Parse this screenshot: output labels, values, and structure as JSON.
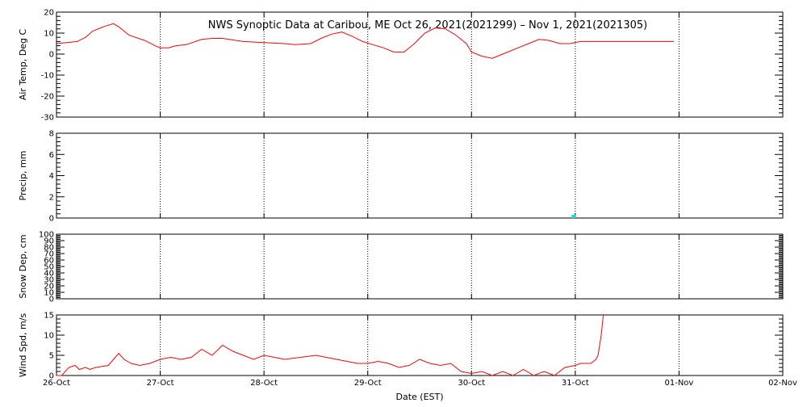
{
  "title": "NWS Synoptic Data at Caribou, ME   Oct 26, 2021(2021299) – Nov  1, 2021(2021305)",
  "chart_data": {
    "type": "line",
    "xlabel": "Date (EST)",
    "x_domain_days": [
      0,
      7
    ],
    "x_ticks": [
      {
        "day": 0,
        "label": "26-Oct"
      },
      {
        "day": 1,
        "label": "27-Oct"
      },
      {
        "day": 2,
        "label": "28-Oct"
      },
      {
        "day": 3,
        "label": "29-Oct"
      },
      {
        "day": 4,
        "label": "30-Oct"
      },
      {
        "day": 5,
        "label": "31-Oct"
      },
      {
        "day": 6,
        "label": "01-Nov"
      },
      {
        "day": 7,
        "label": "02-Nov"
      }
    ],
    "series_color": "#ff0000",
    "precip_color": "#00e5e5",
    "grid": "dotted-vertical",
    "panels": [
      {
        "key": "airtemp",
        "ylabel": "Air Temp, Deg C",
        "ylim": [
          -30,
          20
        ],
        "yticks": [
          20,
          10,
          0,
          -10,
          -20,
          -30
        ],
        "series": [
          [
            0.0,
            5
          ],
          [
            0.1,
            5.5
          ],
          [
            0.2,
            6
          ],
          [
            0.28,
            8
          ],
          [
            0.35,
            11
          ],
          [
            0.45,
            13
          ],
          [
            0.55,
            14.5
          ],
          [
            0.6,
            13
          ],
          [
            0.7,
            9
          ],
          [
            0.85,
            6.5
          ],
          [
            0.95,
            4
          ],
          [
            1.0,
            3
          ],
          [
            1.08,
            3
          ],
          [
            1.15,
            4
          ],
          [
            1.25,
            4.5
          ],
          [
            1.4,
            7
          ],
          [
            1.5,
            7.5
          ],
          [
            1.6,
            7.5
          ],
          [
            1.8,
            6
          ],
          [
            2.0,
            5.5
          ],
          [
            2.2,
            5
          ],
          [
            2.3,
            4.5
          ],
          [
            2.45,
            5
          ],
          [
            2.55,
            7.5
          ],
          [
            2.65,
            9.5
          ],
          [
            2.75,
            10.5
          ],
          [
            2.85,
            8.5
          ],
          [
            2.95,
            6
          ],
          [
            3.05,
            4.5
          ],
          [
            3.15,
            3
          ],
          [
            3.25,
            1
          ],
          [
            3.35,
            1
          ],
          [
            3.45,
            5
          ],
          [
            3.55,
            10
          ],
          [
            3.65,
            12.5
          ],
          [
            3.75,
            12
          ],
          [
            3.85,
            9
          ],
          [
            3.95,
            5
          ],
          [
            4.0,
            1
          ],
          [
            4.05,
            0
          ],
          [
            4.1,
            -1
          ],
          [
            4.2,
            -2
          ],
          [
            4.3,
            0
          ],
          [
            4.45,
            3
          ],
          [
            4.55,
            5
          ],
          [
            4.65,
            7
          ],
          [
            4.75,
            6.5
          ],
          [
            4.85,
            5
          ],
          [
            4.95,
            5
          ],
          [
            5.05,
            6
          ],
          [
            5.5,
            6
          ],
          [
            5.95,
            6
          ]
        ]
      },
      {
        "key": "precip",
        "ylabel": "Precip, mm",
        "ylim": [
          0,
          8
        ],
        "yticks": [
          8,
          6,
          4,
          2,
          0
        ],
        "bars": [
          {
            "day": 4.98,
            "value": 0.3
          }
        ]
      },
      {
        "key": "snowdep",
        "ylabel": "Snow Dep, cm",
        "ylim": [
          0,
          100
        ],
        "yticks": [
          100,
          90,
          80,
          70,
          60,
          50,
          40,
          30,
          20,
          10,
          0
        ],
        "series": []
      },
      {
        "key": "windspd",
        "ylabel": "Wind Spd, m/s",
        "ylim": [
          0,
          15
        ],
        "yticks": [
          15,
          10,
          5,
          0
        ],
        "series": [
          [
            0.0,
            0
          ],
          [
            0.05,
            0
          ],
          [
            0.12,
            2
          ],
          [
            0.18,
            2.5
          ],
          [
            0.22,
            1.5
          ],
          [
            0.28,
            2
          ],
          [
            0.32,
            1.5
          ],
          [
            0.38,
            2
          ],
          [
            0.5,
            2.5
          ],
          [
            0.55,
            4
          ],
          [
            0.6,
            5.5
          ],
          [
            0.65,
            4
          ],
          [
            0.72,
            3
          ],
          [
            0.8,
            2.5
          ],
          [
            0.9,
            3
          ],
          [
            1.0,
            4
          ],
          [
            1.1,
            4.5
          ],
          [
            1.2,
            4
          ],
          [
            1.3,
            4.5
          ],
          [
            1.4,
            6.5
          ],
          [
            1.5,
            5
          ],
          [
            1.6,
            7.5
          ],
          [
            1.7,
            6
          ],
          [
            1.8,
            5
          ],
          [
            1.9,
            4
          ],
          [
            2.0,
            5
          ],
          [
            2.1,
            4.5
          ],
          [
            2.2,
            4
          ],
          [
            2.35,
            4.5
          ],
          [
            2.5,
            5
          ],
          [
            2.6,
            4.5
          ],
          [
            2.7,
            4
          ],
          [
            2.8,
            3.5
          ],
          [
            2.9,
            3
          ],
          [
            3.0,
            3
          ],
          [
            3.1,
            3.5
          ],
          [
            3.2,
            3
          ],
          [
            3.3,
            2
          ],
          [
            3.4,
            2.5
          ],
          [
            3.5,
            4
          ],
          [
            3.6,
            3
          ],
          [
            3.7,
            2.5
          ],
          [
            3.8,
            3
          ],
          [
            3.9,
            1
          ],
          [
            4.0,
            0.5
          ],
          [
            4.1,
            1
          ],
          [
            4.2,
            0
          ],
          [
            4.3,
            1
          ],
          [
            4.4,
            0
          ],
          [
            4.5,
            1.5
          ],
          [
            4.6,
            0
          ],
          [
            4.7,
            1
          ],
          [
            4.8,
            0
          ],
          [
            4.9,
            2
          ],
          [
            5.0,
            2.5
          ],
          [
            5.05,
            3
          ],
          [
            5.15,
            3
          ],
          [
            5.2,
            4
          ],
          [
            5.22,
            5
          ],
          [
            5.25,
            10
          ],
          [
            5.27,
            15
          ]
        ]
      }
    ]
  }
}
